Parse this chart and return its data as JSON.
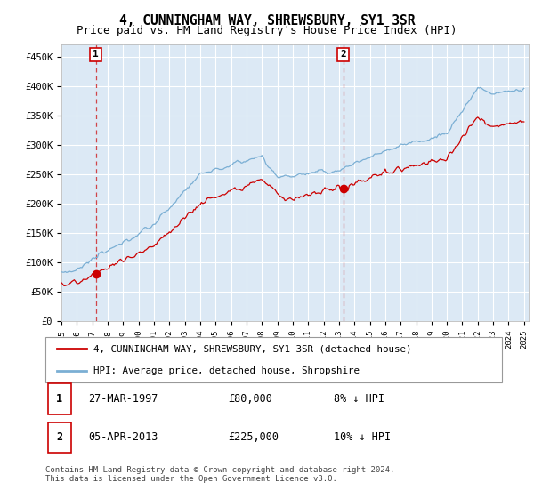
{
  "title": "4, CUNNINGHAM WAY, SHREWSBURY, SY1 3SR",
  "subtitle": "Price paid vs. HM Land Registry's House Price Index (HPI)",
  "title_fontsize": 10.5,
  "subtitle_fontsize": 9,
  "ylim": [
    0,
    470000
  ],
  "yticks": [
    0,
    50000,
    100000,
    150000,
    200000,
    250000,
    300000,
    350000,
    400000,
    450000
  ],
  "ytick_labels": [
    "£0",
    "£50K",
    "£100K",
    "£150K",
    "£200K",
    "£250K",
    "£300K",
    "£350K",
    "£400K",
    "£450K"
  ],
  "plot_bg_color": "#dce9f5",
  "grid_color": "#ffffff",
  "hpi_color": "#7bafd4",
  "price_color": "#cc0000",
  "marker_color": "#cc0000",
  "dashed_line_color": "#cc0000",
  "transaction1_price": 80000,
  "transaction1_year": 1997.23,
  "transaction2_price": 225000,
  "transaction2_year": 2013.27,
  "legend_price_label": "4, CUNNINGHAM WAY, SHREWSBURY, SY1 3SR (detached house)",
  "legend_hpi_label": "HPI: Average price, detached house, Shropshire",
  "table_row1": [
    "1",
    "27-MAR-1997",
    "£80,000",
    "8% ↓ HPI"
  ],
  "table_row2": [
    "2",
    "05-APR-2013",
    "£225,000",
    "10% ↓ HPI"
  ],
  "footnote": "Contains HM Land Registry data © Crown copyright and database right 2024.\nThis data is licensed under the Open Government Licence v3.0.",
  "marker_size": 6
}
